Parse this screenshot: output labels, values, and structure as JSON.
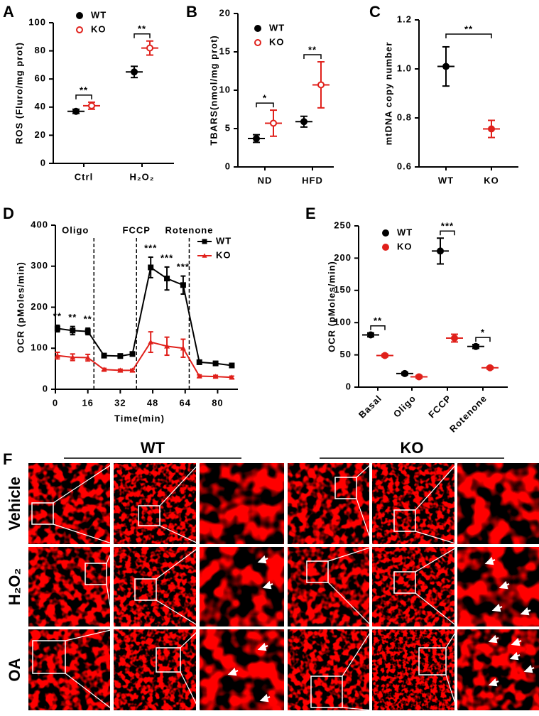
{
  "chart_data": [
    {
      "label": "A",
      "type": "dot",
      "y_label": "ROS (Fluro/mg prot)",
      "categories": [
        "Ctrl",
        "H₂O₂"
      ],
      "series": [
        {
          "name": "WT",
          "color": "#000000",
          "marker": "filled",
          "values": [
            37,
            65
          ],
          "errors": [
            1.5,
            4
          ]
        },
        {
          "name": "KO",
          "color": "#e0201b",
          "marker": "open",
          "values": [
            41,
            82
          ],
          "errors": [
            2.5,
            5
          ]
        }
      ],
      "ylim": [
        0,
        100
      ],
      "yticks": [
        0,
        20,
        40,
        60,
        80,
        100
      ],
      "annotations": [
        "**",
        "**"
      ]
    },
    {
      "label": "B",
      "type": "dot",
      "y_label": "TBARS(nmol/mg prot)",
      "categories": [
        "ND",
        "HFD"
      ],
      "series": [
        {
          "name": "WT",
          "color": "#000000",
          "marker": "filled",
          "values": [
            3.7,
            5.9
          ],
          "errors": [
            0.5,
            0.7
          ]
        },
        {
          "name": "KO",
          "color": "#e0201b",
          "marker": "open",
          "values": [
            5.7,
            10.7
          ],
          "errors": [
            1.7,
            3
          ]
        }
      ],
      "ylim": [
        0,
        20
      ],
      "yticks": [
        0,
        5,
        10,
        15,
        20
      ],
      "annotations": [
        "*",
        "**"
      ]
    },
    {
      "label": "C",
      "type": "dot",
      "y_label": "mtDNA copy number",
      "categories": [
        "WT",
        "KO"
      ],
      "series": [
        {
          "colors": [
            "#000000",
            "#e0201b"
          ],
          "marker": "filled",
          "values": [
            1.01,
            0.755
          ],
          "errors": [
            0.08,
            0.035
          ]
        }
      ],
      "ylim": [
        0.6,
        1.2
      ],
      "yticks": [
        0.6,
        0.8,
        {
          "value": 1,
          "label": "1.0"
        },
        1.2
      ],
      "annotation": "**"
    },
    {
      "label": "D",
      "type": "line",
      "y_label": "OCR (pMoles/min)",
      "x_label": "Time(min)",
      "x": [
        1,
        8.5,
        16,
        24,
        32,
        38,
        47,
        55,
        63,
        71,
        79,
        87
      ],
      "series": [
        {
          "name": "WT",
          "color": "#000000",
          "marker": "square",
          "values": [
            148,
            143,
            141,
            82,
            81,
            86,
            297,
            270,
            254,
            66,
            63,
            58
          ],
          "errors": [
            8,
            10,
            8,
            5,
            5,
            5,
            25,
            28,
            22,
            5,
            5,
            5
          ]
        },
        {
          "name": "KO",
          "color": "#e0201b",
          "marker": "triangle",
          "values": [
            82,
            78,
            77,
            48,
            46,
            46,
            115,
            105,
            100,
            32,
            31,
            29
          ],
          "errors": [
            8,
            8,
            8,
            3,
            3,
            3,
            25,
            22,
            22,
            3,
            3,
            3
          ]
        }
      ],
      "phases": [
        {
          "label": "Oligo",
          "x": 19
        },
        {
          "label": "FCCP",
          "x": 40
        },
        {
          "label": "Rotenone",
          "x": 66
        }
      ],
      "xlim": [
        0,
        90
      ],
      "xticks": [
        0,
        16,
        32,
        48,
        64,
        80
      ],
      "ylim": [
        0,
        400
      ],
      "yticks": [
        0,
        100,
        200,
        300,
        400
      ],
      "annotations": [
        "**",
        "**",
        "**",
        "***",
        "***",
        "***"
      ]
    },
    {
      "label": "E",
      "type": "dot",
      "y_label": "OCR (pMoles/min)",
      "categories": [
        "Basal",
        "Oligo",
        "FCCP",
        "Rotenone"
      ],
      "series": [
        {
          "name": "WT",
          "color": "#000000",
          "marker": "filled",
          "values": [
            81,
            21,
            211,
            63
          ],
          "errors": [
            3,
            2,
            20,
            3
          ]
        },
        {
          "name": "KO",
          "color": "#e0201b",
          "marker": "filled",
          "values": [
            49,
            16,
            76,
            30
          ],
          "errors": [
            2,
            2,
            6,
            2
          ]
        }
      ],
      "ylim": [
        0,
        250
      ],
      "yticks": [
        0,
        50,
        100,
        150,
        200,
        250
      ],
      "annotations": [
        "**",
        null,
        "***",
        "*"
      ]
    }
  ],
  "figure_f": {
    "label": "F",
    "columns": [
      "WT",
      "KO"
    ],
    "rows": [
      "Vehicle",
      "H₂O₂",
      "OA"
    ]
  }
}
